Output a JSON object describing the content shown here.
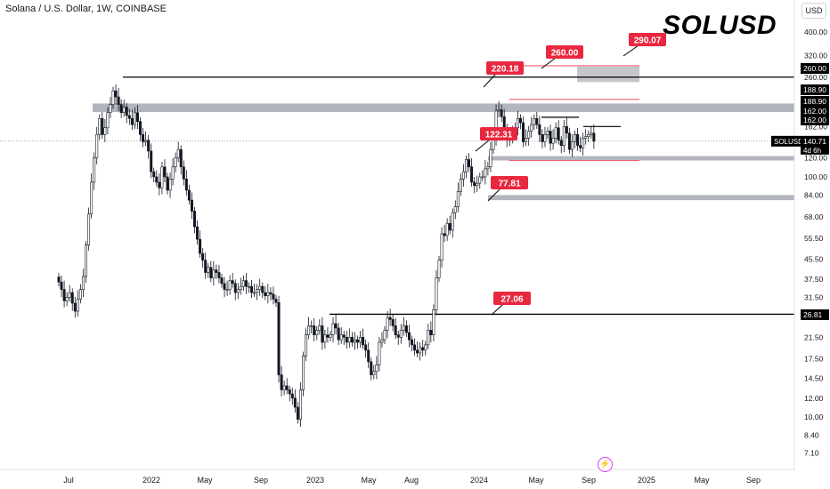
{
  "header": {
    "title": "Solana / U.S. Dollar, 1W, COINBASE",
    "watermark": "SOLUSD",
    "currency": "USD",
    "lightning_icon": "lightning-icon"
  },
  "colors": {
    "up": "#26a69a",
    "down": "#000000",
    "candle": "#131722",
    "level_line": "#000000",
    "zone": "#b2b5be",
    "callout": "#e8283f",
    "callout_text": "#ffffff",
    "red_line": "#f23645",
    "axis_text": "#131722",
    "grid": "#ffffff",
    "price_line": "#787b86"
  },
  "chart_data": {
    "type": "candlestick",
    "title": "SOLUSD",
    "x_axis_ticks": [
      "Jul",
      "2022",
      "May",
      "Sep",
      "2023",
      "May",
      "Aug",
      "2024",
      "May",
      "Sep",
      "2025",
      "May",
      "Sep"
    ],
    "y_axis_ticks": [
      "400.00",
      "320.00",
      "260.00",
      "188.90",
      "162.00",
      "120.00",
      "100.00",
      "84.00",
      "68.00",
      "55.50",
      "45.50",
      "37.50",
      "31.50",
      "26.81",
      "21.50",
      "17.50",
      "14.50",
      "12.00",
      "10.00",
      "8.40",
      "7.10"
    ],
    "y_scale": "log",
    "ylim": [
      6.6,
      440
    ],
    "current_price": {
      "symbol": "SOLUSD",
      "price": "140.71",
      "countdown": "4d 6h"
    },
    "axis_labels_boxed": [
      "260.00",
      "188.90",
      "188.90",
      "162.00",
      "162.00",
      "26.81"
    ],
    "horizontal_levels": [
      260.0,
      26.81
    ],
    "zones": [
      {
        "low": 186,
        "high": 202,
        "label": "188.90"
      },
      {
        "low": 117,
        "high": 122,
        "label": "120.00"
      },
      {
        "low": 80,
        "high": 84,
        "label": "84.00"
      }
    ],
    "callouts": [
      "290.07",
      "260.00",
      "220.18",
      "122.31",
      "77.81",
      "27.06"
    ],
    "weekly_closes": [
      36.5,
      34.0,
      30.5,
      31.5,
      33.0,
      29.8,
      27.6,
      31.0,
      34.0,
      38.5,
      52.0,
      70.0,
      95.0,
      120.0,
      150.0,
      175.0,
      150.0,
      160.0,
      185.0,
      200.0,
      228.0,
      215.0,
      200.0,
      185.0,
      195.0,
      180.0,
      175.0,
      165.0,
      185.0,
      170.0,
      150.0,
      140.0,
      142.0,
      128.0,
      105.0,
      100.0,
      95.0,
      90.0,
      110.0,
      100.0,
      88.0,
      98.0,
      110.0,
      120.0,
      130.0,
      110.0,
      98.0,
      88.0,
      80.0,
      72.0,
      62.0,
      55.0,
      48.0,
      45.0,
      40.0,
      42.0,
      38.0,
      41.0,
      40.0,
      38.0,
      36.0,
      34.0,
      34.0,
      37.0,
      36.0,
      33.0,
      34.0,
      35.0,
      37.0,
      35.0,
      35.0,
      33.0,
      33.0,
      34.0,
      35.0,
      33.0,
      32.0,
      33.0,
      32.5,
      31.0,
      30.0,
      15.0,
      13.0,
      13.5,
      13.0,
      12.5,
      12.0,
      11.0,
      9.8,
      13.0,
      18.0,
      22.0,
      24.0,
      24.0,
      22.0,
      23.0,
      24.0,
      20.5,
      22.0,
      21.5,
      22.0,
      24.5,
      23.5,
      21.0,
      22.0,
      21.5,
      20.5,
      21.5,
      20.5,
      21.0,
      20.5,
      21.5,
      20.0,
      19.0,
      17.0,
      15.0,
      15.5,
      16.5,
      20.5,
      21.0,
      23.0,
      26.0,
      25.5,
      24.0,
      22.0,
      21.5,
      23.0,
      24.0,
      22.5,
      21.0,
      20.0,
      19.0,
      18.5,
      19.5,
      19.0,
      20.0,
      23.0,
      22.0,
      28.0,
      38.0,
      45.0,
      58.0,
      57.0,
      64.0,
      60.0,
      71.0,
      75.0,
      87.0,
      98.0,
      105.0,
      118.0,
      110.0,
      95.0,
      92.0,
      94.0,
      100.0,
      100.0,
      108.0,
      110.0,
      130.0,
      145.0,
      188.0,
      190.0,
      178.0,
      160.0,
      143.0,
      145.0,
      150.0,
      160.0,
      175.0,
      168.0,
      140.0,
      145.0,
      155.0,
      165.0,
      175.0,
      165.0,
      150.0,
      140.0,
      150.0,
      155.0,
      138.0,
      145.0,
      160.0,
      142.0,
      135.0,
      162.0,
      152.0,
      130.0,
      140.0,
      150.0,
      135.0,
      132.0,
      145.0,
      147.0,
      150.0,
      152.0,
      140.7
    ]
  }
}
